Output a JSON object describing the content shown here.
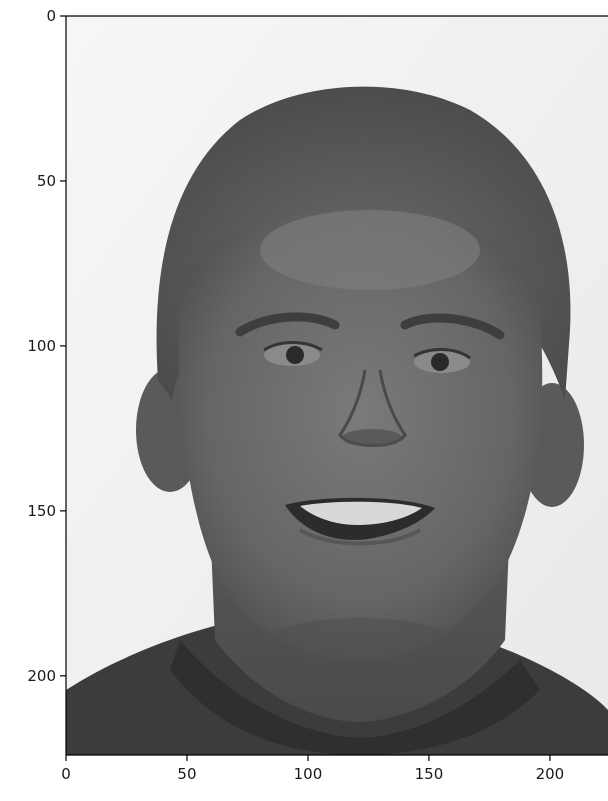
{
  "image": {
    "subject": "grayscale face photograph",
    "colormap": "gray",
    "background_color": "#f2f2f2",
    "hair_color": "#5c5c5c",
    "skin_color": "#6e6e6e",
    "shirt_color": "#3f3f3f"
  },
  "axes": {
    "x_range": [
      0,
      224
    ],
    "y_range": [
      0,
      224
    ],
    "y_inverted": true,
    "grid": false,
    "x_ticks": [
      {
        "value": 0,
        "label": "0"
      },
      {
        "value": 50,
        "label": "50"
      },
      {
        "value": 100,
        "label": "100"
      },
      {
        "value": 150,
        "label": "150"
      },
      {
        "value": 200,
        "label": "200"
      }
    ],
    "y_ticks": [
      {
        "value": 0,
        "label": "0"
      },
      {
        "value": 50,
        "label": "50"
      },
      {
        "value": 100,
        "label": "100"
      },
      {
        "value": 150,
        "label": "150"
      },
      {
        "value": 200,
        "label": "200"
      }
    ]
  }
}
